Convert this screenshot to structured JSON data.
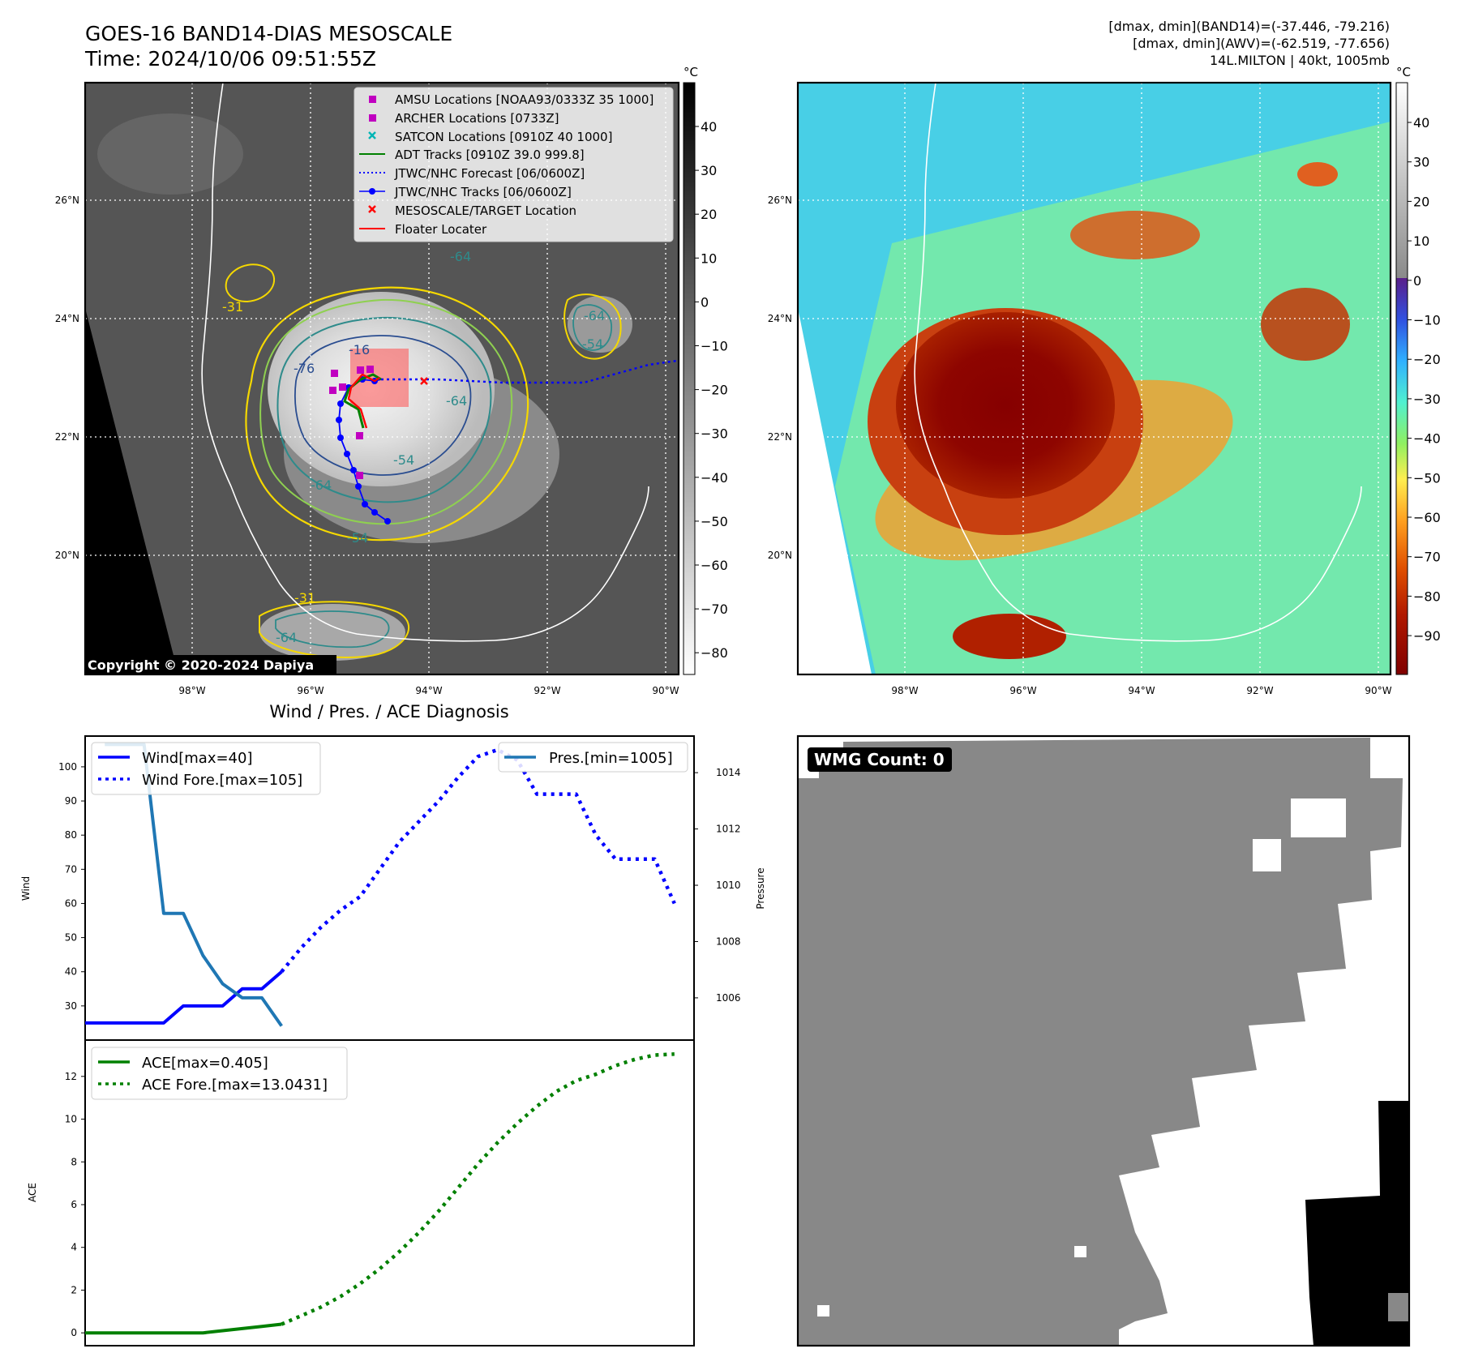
{
  "header": {
    "title_line1": "GOES-16 BAND14-DIAS MESOSCALE",
    "title_line2": "Time: 2024/10/06 09:51:55Z",
    "info_line1": "[dmax, dmin](BAND14)=(-37.446, -79.216)",
    "info_line2": "[dmax, dmin](AWV)=(-62.519, -77.656)",
    "info_line3": "14L.MILTON | 40kt, 1005mb"
  },
  "map": {
    "lat_labels": [
      "26°N",
      "24°N",
      "22°N",
      "20°N"
    ],
    "lon_labels": [
      "98°W",
      "96°W",
      "94°W",
      "92°W",
      "90°W"
    ],
    "copyright": "Copyright © 2020-2024 Dapiya",
    "contour_labels": [
      "-31",
      "-76",
      "-64",
      "-64",
      "-54",
      "-64",
      "-54",
      "-64",
      "-31",
      "-54",
      "-64",
      "-16"
    ],
    "legend": [
      {
        "label": "AMSU Locations [NOAA93/0333Z 35 1000]",
        "marker": "square",
        "color": "#c000c0"
      },
      {
        "label": "ARCHER Locations [0733Z]",
        "marker": "square",
        "color": "#c000c0"
      },
      {
        "label": "SATCON Locations [0910Z 40 1000]",
        "marker": "x",
        "color": "#00b5b5"
      },
      {
        "label": "ADT Tracks [0910Z 39.0 999.8]",
        "marker": "line",
        "color": "#008000"
      },
      {
        "label": "JTWC/NHC Forecast [06/0600Z]",
        "marker": "dotted",
        "color": "#0000ff"
      },
      {
        "label": "JTWC/NHC Tracks [06/0600Z]",
        "marker": "line-dot",
        "color": "#0000ff"
      },
      {
        "label": "MESOSCALE/TARGET Location",
        "marker": "x",
        "color": "#ff0000"
      },
      {
        "label": "Floater Locater",
        "marker": "line",
        "color": "#ff0000"
      }
    ]
  },
  "colorbar_gray": {
    "unit": "°C",
    "ticks": [
      "40",
      "30",
      "20",
      "10",
      "0",
      "−10",
      "−20",
      "−30",
      "−40",
      "−50",
      "−60",
      "−70",
      "−80"
    ]
  },
  "colorbar_color": {
    "unit": "°C",
    "ticks": [
      "40",
      "30",
      "20",
      "10",
      "0",
      "−10",
      "−20",
      "−30",
      "−40",
      "−50",
      "−60",
      "−70",
      "−80",
      "−90"
    ]
  },
  "wmg": {
    "label": "WMG Count: 0"
  },
  "colors": {
    "wind": "#0000ff",
    "pres": "#1f77b4",
    "ace": "#008000",
    "track_red": "#ff0000",
    "satcon": "#00b5b5",
    "amsu": "#c000c0"
  },
  "chart_data": [
    {
      "type": "line",
      "title": "Wind / Pres. / ACE Diagnosis",
      "ylabel": "Wind",
      "ylim": [
        20,
        109
      ],
      "yticks": [
        "30",
        "40",
        "50",
        "60",
        "70",
        "80",
        "90",
        "100"
      ],
      "xlim": [
        0,
        31
      ],
      "series": [
        {
          "name": "Wind[max=40]",
          "style": "solid",
          "x": [
            0,
            1,
            2,
            3,
            4,
            5,
            6,
            7,
            8,
            9,
            10
          ],
          "values": [
            25,
            25,
            25,
            25,
            25,
            30,
            30,
            30,
            35,
            35,
            40
          ]
        },
        {
          "name": "Wind Fore.[max=105]",
          "style": "dotted",
          "x": [
            10,
            11,
            12,
            13,
            14,
            15,
            16,
            17,
            18,
            19,
            20,
            21,
            22,
            23,
            24,
            25,
            26,
            27,
            28,
            29,
            30
          ],
          "values": [
            40,
            47,
            53,
            58,
            62,
            70,
            78,
            84,
            90,
            97,
            103,
            105,
            102,
            92,
            92,
            92,
            80,
            73,
            73,
            73,
            60
          ]
        }
      ]
    },
    {
      "type": "line",
      "ylabel": "Pressure",
      "ylim": [
        1004.5,
        1015.3
      ],
      "yticks": [
        "1006",
        "1008",
        "1010",
        "1012",
        "1014"
      ],
      "xlim": [
        0,
        31
      ],
      "series": [
        {
          "name": "Pres.[min=1005]",
          "style": "solid",
          "x": [
            1,
            2,
            3,
            4,
            5,
            6,
            7,
            8,
            9,
            10
          ],
          "values": [
            1015,
            1015,
            1015,
            1009,
            1009,
            1007.5,
            1006.5,
            1006,
            1006,
            1005
          ]
        }
      ]
    },
    {
      "type": "line",
      "ylabel": "ACE",
      "ylim": [
        -0.6,
        13.7
      ],
      "yticks": [
        "0",
        "2",
        "4",
        "6",
        "8",
        "10",
        "12"
      ],
      "xlim": [
        0,
        31
      ],
      "series": [
        {
          "name": "ACE[max=0.405]",
          "style": "solid",
          "x": [
            0,
            1,
            2,
            3,
            4,
            5,
            6,
            7,
            8,
            9,
            10
          ],
          "values": [
            0,
            0,
            0,
            0,
            0,
            0,
            0,
            0.1,
            0.2,
            0.3,
            0.405
          ]
        },
        {
          "name": "ACE Fore.[max=13.0431]",
          "style": "dotted",
          "x": [
            10,
            11,
            12,
            13,
            14,
            15,
            16,
            17,
            18,
            19,
            20,
            21,
            22,
            23,
            24,
            25,
            26,
            27,
            28,
            29,
            30
          ],
          "values": [
            0.405,
            0.8,
            1.2,
            1.7,
            2.3,
            3.0,
            3.8,
            4.7,
            5.7,
            6.8,
            7.9,
            8.9,
            9.8,
            10.6,
            11.3,
            11.8,
            12.1,
            12.5,
            12.8,
            13.0,
            13.0431
          ]
        }
      ]
    }
  ]
}
